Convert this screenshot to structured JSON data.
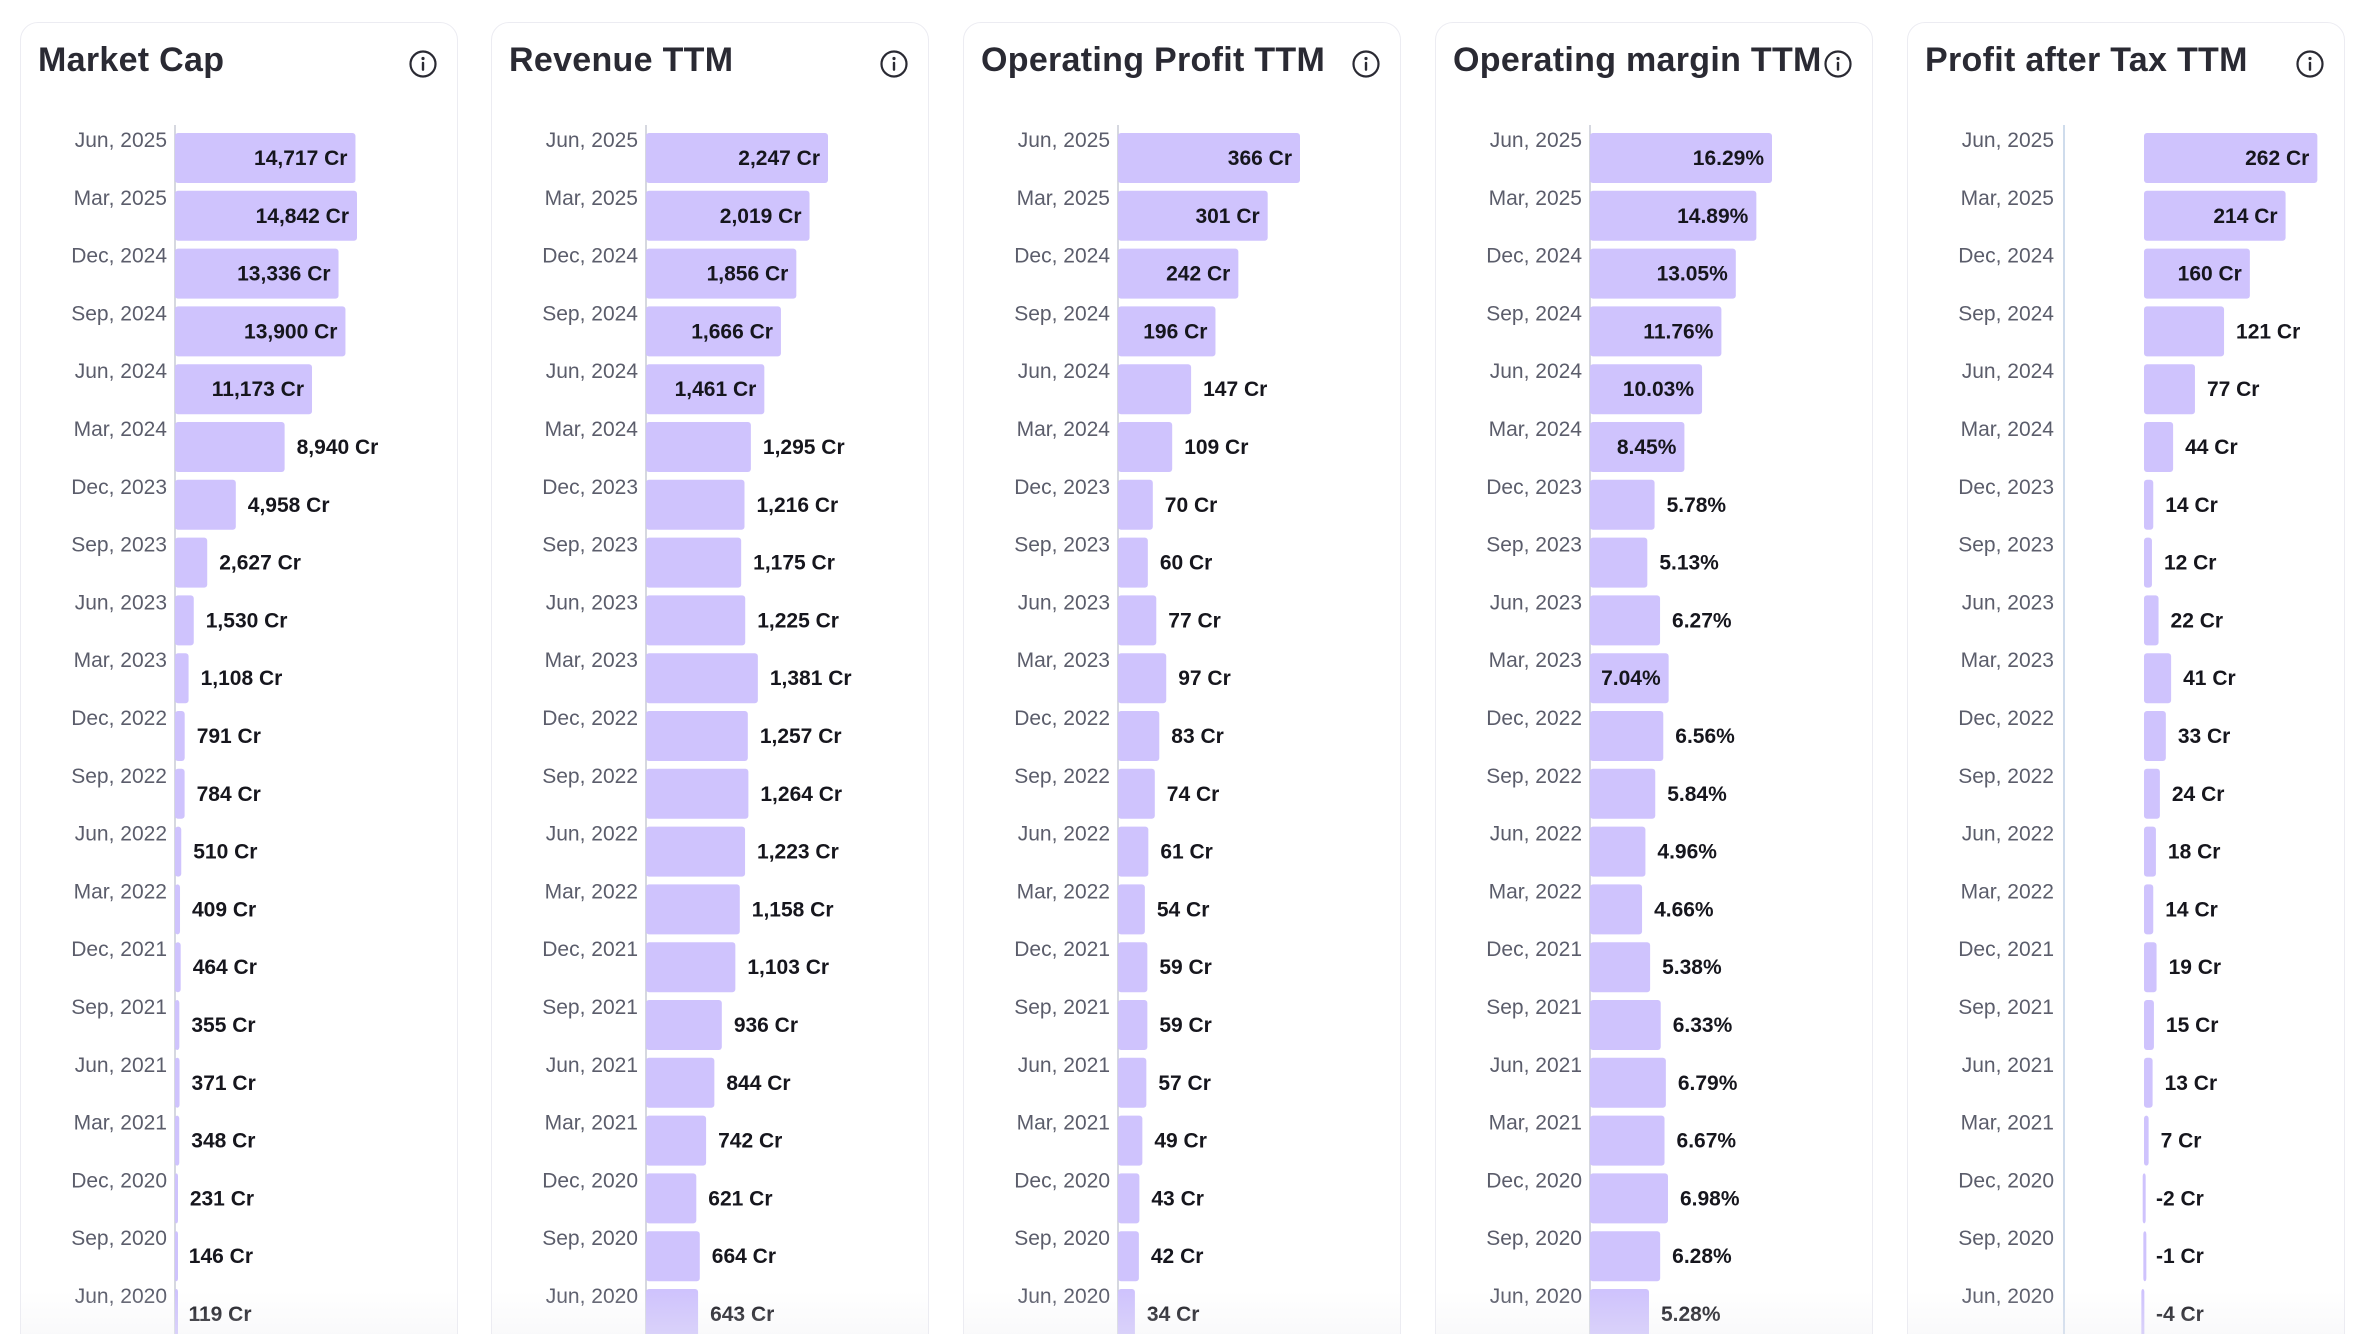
{
  "colors": {
    "bar": "#cfc3fd",
    "axis": "#c8ccd6",
    "axis_profit": "#bfd0e6",
    "tick_text": "#5b5d6b",
    "value_text": "#16161d",
    "title_text": "#2a2a33"
  },
  "info_icon": "info-circle-icon",
  "chart_data": [
    {
      "type": "bar",
      "orientation": "horizontal",
      "title": "Market Cap",
      "unit_suffix": " Cr",
      "categories": [
        "Jun, 2025",
        "Mar, 2025",
        "Dec, 2024",
        "Sep, 2024",
        "Jun, 2024",
        "Mar, 2024",
        "Dec, 2023",
        "Sep, 2023",
        "Jun, 2023",
        "Mar, 2023",
        "Dec, 2022",
        "Sep, 2022",
        "Jun, 2022",
        "Mar, 2022",
        "Dec, 2021",
        "Sep, 2021",
        "Jun, 2021",
        "Mar, 2021",
        "Dec, 2020",
        "Sep, 2020",
        "Jun, 2020"
      ],
      "values": [
        14717,
        14842,
        13336,
        13900,
        11173,
        8940,
        4958,
        2627,
        1530,
        1108,
        791,
        784,
        510,
        409,
        464,
        355,
        371,
        348,
        231,
        146,
        119
      ],
      "labels": [
        "14,717 Cr",
        "14,842 Cr",
        "13,336 Cr",
        "13,900 Cr",
        "11,173 Cr",
        "8,940 Cr",
        "4,958 Cr",
        "2,627 Cr",
        "1,530 Cr",
        "1,108 Cr",
        "791 Cr",
        "784 Cr",
        "510 Cr",
        "409 Cr",
        "464 Cr",
        "355 Cr",
        "371 Cr",
        "348 Cr",
        "231 Cr",
        "146 Cr",
        "119 Cr"
      ],
      "xlim": [
        0,
        14842
      ]
    },
    {
      "type": "bar",
      "orientation": "horizontal",
      "title": "Revenue TTM",
      "unit_suffix": " Cr",
      "categories": [
        "Jun, 2025",
        "Mar, 2025",
        "Dec, 2024",
        "Sep, 2024",
        "Jun, 2024",
        "Mar, 2024",
        "Dec, 2023",
        "Sep, 2023",
        "Jun, 2023",
        "Mar, 2023",
        "Dec, 2022",
        "Sep, 2022",
        "Jun, 2022",
        "Mar, 2022",
        "Dec, 2021",
        "Sep, 2021",
        "Jun, 2021",
        "Mar, 2021",
        "Dec, 2020",
        "Sep, 2020",
        "Jun, 2020"
      ],
      "values": [
        2247,
        2019,
        1856,
        1666,
        1461,
        1295,
        1216,
        1175,
        1225,
        1381,
        1257,
        1264,
        1223,
        1158,
        1103,
        936,
        844,
        742,
        621,
        664,
        643
      ],
      "labels": [
        "2,247 Cr",
        "2,019 Cr",
        "1,856 Cr",
        "1,666 Cr",
        "1,461 Cr",
        "1,295 Cr",
        "1,216 Cr",
        "1,175 Cr",
        "1,225 Cr",
        "1,381 Cr",
        "1,257 Cr",
        "1,264 Cr",
        "1,223 Cr",
        "1,158 Cr",
        "1,103 Cr",
        "936 Cr",
        "844 Cr",
        "742 Cr",
        "621 Cr",
        "664 Cr",
        "643 Cr"
      ],
      "xlim": [
        0,
        2247
      ]
    },
    {
      "type": "bar",
      "orientation": "horizontal",
      "title": "Operating Profit TTM",
      "unit_suffix": " Cr",
      "categories": [
        "Jun, 2025",
        "Mar, 2025",
        "Dec, 2024",
        "Sep, 2024",
        "Jun, 2024",
        "Mar, 2024",
        "Dec, 2023",
        "Sep, 2023",
        "Jun, 2023",
        "Mar, 2023",
        "Dec, 2022",
        "Sep, 2022",
        "Jun, 2022",
        "Mar, 2022",
        "Dec, 2021",
        "Sep, 2021",
        "Jun, 2021",
        "Mar, 2021",
        "Dec, 2020",
        "Sep, 2020",
        "Jun, 2020"
      ],
      "values": [
        366,
        301,
        242,
        196,
        147,
        109,
        70,
        60,
        77,
        97,
        83,
        74,
        61,
        54,
        59,
        59,
        57,
        49,
        43,
        42,
        34
      ],
      "labels": [
        "366 Cr",
        "301 Cr",
        "242 Cr",
        "196 Cr",
        "147 Cr",
        "109 Cr",
        "70 Cr",
        "60 Cr",
        "77 Cr",
        "97 Cr",
        "83 Cr",
        "74 Cr",
        "61 Cr",
        "54 Cr",
        "59 Cr",
        "59 Cr",
        "57 Cr",
        "49 Cr",
        "43 Cr",
        "42 Cr",
        "34 Cr"
      ],
      "xlim": [
        0,
        366
      ]
    },
    {
      "type": "bar",
      "orientation": "horizontal",
      "title": "Operating margin TTM",
      "unit_suffix": "%",
      "categories": [
        "Jun, 2025",
        "Mar, 2025",
        "Dec, 2024",
        "Sep, 2024",
        "Jun, 2024",
        "Mar, 2024",
        "Dec, 2023",
        "Sep, 2023",
        "Jun, 2023",
        "Mar, 2023",
        "Dec, 2022",
        "Sep, 2022",
        "Jun, 2022",
        "Mar, 2022",
        "Dec, 2021",
        "Sep, 2021",
        "Jun, 2021",
        "Mar, 2021",
        "Dec, 2020",
        "Sep, 2020",
        "Jun, 2020"
      ],
      "values": [
        16.29,
        14.89,
        13.05,
        11.76,
        10.03,
        8.45,
        5.78,
        5.13,
        6.27,
        7.04,
        6.56,
        5.84,
        4.96,
        4.66,
        5.38,
        6.33,
        6.79,
        6.67,
        6.98,
        6.28,
        5.28
      ],
      "labels": [
        "16.29%",
        "14.89%",
        "13.05%",
        "11.76%",
        "10.03%",
        "8.45%",
        "5.78%",
        "5.13%",
        "6.27%",
        "7.04%",
        "6.56%",
        "5.84%",
        "4.96%",
        "4.66%",
        "5.38%",
        "6.33%",
        "6.79%",
        "6.67%",
        "6.98%",
        "6.28%",
        "5.28%"
      ],
      "xlim": [
        0,
        16.29
      ]
    },
    {
      "type": "bar",
      "orientation": "horizontal",
      "title": "Profit after Tax TTM",
      "unit_suffix": " Cr",
      "categories": [
        "Jun, 2025",
        "Mar, 2025",
        "Dec, 2024",
        "Sep, 2024",
        "Jun, 2024",
        "Mar, 2024",
        "Dec, 2023",
        "Sep, 2023",
        "Jun, 2023",
        "Mar, 2023",
        "Dec, 2022",
        "Sep, 2022",
        "Jun, 2022",
        "Mar, 2022",
        "Dec, 2021",
        "Sep, 2021",
        "Jun, 2021",
        "Mar, 2021",
        "Dec, 2020",
        "Sep, 2020",
        "Jun, 2020"
      ],
      "values": [
        262,
        214,
        160,
        121,
        77,
        44,
        14,
        12,
        22,
        41,
        33,
        24,
        18,
        14,
        19,
        15,
        13,
        7,
        -2,
        -1,
        -4
      ],
      "labels": [
        "262 Cr",
        "214 Cr",
        "160 Cr",
        "121 Cr",
        "77 Cr",
        "44 Cr",
        "14 Cr",
        "12 Cr",
        "22 Cr",
        "41 Cr",
        "33 Cr",
        "24 Cr",
        "18 Cr",
        "14 Cr",
        "19 Cr",
        "15 Cr",
        "13 Cr",
        "7 Cr",
        "-2 Cr",
        "-1 Cr",
        "-4 Cr"
      ],
      "xlim": [
        -4,
        262
      ],
      "has_negative_axis": true
    }
  ]
}
